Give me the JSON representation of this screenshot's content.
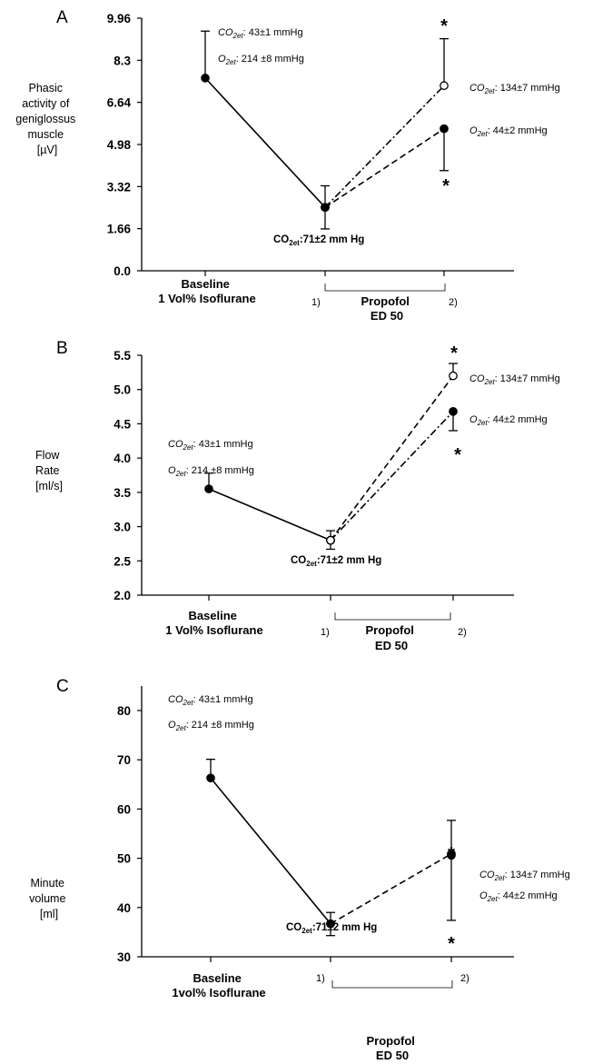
{
  "chart_data": [
    {
      "type": "line",
      "panel": "A",
      "ylabel": [
        "Phasic",
        "activity of",
        "geniglossus",
        "muscle",
        "[µV]"
      ],
      "yticks": [
        "0.0",
        "1.66",
        "3.32",
        "4.98",
        "6.64",
        "8.3",
        "9.96"
      ],
      "ylim": [
        0,
        9.96
      ],
      "categories": [
        "Baseline",
        "Propofol 1)",
        "Propofol 2)"
      ],
      "x_label_baseline": [
        "Baseline",
        "1 Vol% Isoflurane"
      ],
      "bracket_labels": [
        "1)",
        "2)"
      ],
      "bracket_title": [
        "Propofol",
        "ED 50"
      ],
      "series": [
        {
          "name": "",
          "marker": "filled",
          "style": "solid",
          "x": [
            0,
            1
          ],
          "values": [
            7.6,
            2.5
          ],
          "err_up": [
            1.85,
            0.85
          ],
          "err_down": [
            0,
            0.85
          ]
        },
        {
          "name": "",
          "marker": "open",
          "style": "dashdot",
          "x": [
            1,
            2
          ],
          "values": [
            2.5,
            7.3
          ],
          "err_up": [
            0,
            1.85
          ],
          "err_down": [
            0,
            0
          ]
        },
        {
          "name": "",
          "marker": "filled",
          "style": "dashed",
          "x": [
            1,
            2
          ],
          "values": [
            2.5,
            5.6
          ],
          "err_up": [
            0,
            0
          ],
          "err_down": [
            0,
            1.65
          ]
        }
      ],
      "annotations": {
        "baseline": [
          {
            "sym": "CO",
            "sub": "2et",
            "rest": ": 43±1 mmHg"
          },
          {
            "sym": "O",
            "sub": "2et",
            "rest": ": 214 ±8 mmHg"
          }
        ],
        "right": [
          {
            "sym": "CO",
            "sub": "2et",
            "rest": ": 134±7 mmHg"
          },
          {
            "sym": "O",
            "sub": "2et",
            "rest": ": 44±2 mmHg"
          }
        ],
        "middle": {
          "sym": "CO",
          "sub": "2et",
          "rest": ":71±2 mm Hg"
        },
        "star": "*"
      }
    },
    {
      "type": "line",
      "panel": "B",
      "ylabel": [
        "Flow",
        "Rate",
        "[ml/s]"
      ],
      "yticks": [
        "2.0",
        "2.5",
        "3.0",
        "3.5",
        "4.0",
        "4.5",
        "5.0",
        "5.5"
      ],
      "ylim": [
        2.0,
        5.5
      ],
      "categories": [
        "Baseline",
        "Propofol 1)",
        "Propofol 2)"
      ],
      "x_label_baseline": [
        "Baseline",
        "1 Vol% Isoflurane"
      ],
      "bracket_labels": [
        "1)",
        "2)"
      ],
      "bracket_title": [
        "Propofol",
        "ED 50"
      ],
      "series": [
        {
          "name": "",
          "marker": "filled",
          "style": "solid",
          "x": [
            0,
            1
          ],
          "values": [
            3.55,
            2.8
          ],
          "err_up": [
            0.23,
            0.14
          ],
          "err_down": [
            0,
            0.13
          ]
        },
        {
          "name": "",
          "marker": "open",
          "style": "dashed",
          "x": [
            1,
            2
          ],
          "values": [
            2.8,
            5.2
          ],
          "err_up": [
            0,
            0.18
          ],
          "err_down": [
            0,
            0
          ]
        },
        {
          "name": "",
          "marker": "filled",
          "style": "dashdot",
          "x": [
            1,
            2
          ],
          "values": [
            2.8,
            4.68
          ],
          "err_up": [
            0,
            0
          ],
          "err_down": [
            0,
            0.28
          ]
        }
      ],
      "annotations": {
        "baseline": [
          {
            "sym": "CO",
            "sub": "2et",
            "rest": ": 43±1 mmHg"
          },
          {
            "sym": "O",
            "sub": "2et",
            "rest": ": 214 ±8 mmHg"
          }
        ],
        "right": [
          {
            "sym": "CO",
            "sub": "2et",
            "rest": ": 134±7 mmHg"
          },
          {
            "sym": "O",
            "sub": "2et",
            "rest": ": 44±2 mmHg"
          }
        ],
        "middle": {
          "sym": "CO",
          "sub": "2et",
          "rest": ":71±2 mm Hg"
        },
        "star": "*"
      }
    },
    {
      "type": "line",
      "panel": "C",
      "ylabel": [
        "Minute",
        "volume",
        "[ml]"
      ],
      "yticks": [
        "30",
        "40",
        "50",
        "60",
        "70",
        "80"
      ],
      "ylim": [
        30,
        80
      ],
      "categories": [
        "Baseline",
        "Propofol 1)",
        "Propofol 2)"
      ],
      "x_label_baseline": [
        "Baseline",
        "1vol% Isoflurane"
      ],
      "bracket_labels": [
        "1)",
        "2)"
      ],
      "bracket_title": [
        "Propofol",
        "ED 50"
      ],
      "series": [
        {
          "name": "",
          "marker": "filled",
          "style": "solid",
          "x": [
            0,
            1
          ],
          "values": [
            66.3,
            36.7
          ],
          "err_up": [
            3.8,
            2.3
          ],
          "err_down": [
            0,
            2.4
          ]
        },
        {
          "name": "",
          "marker": "filled",
          "style": "dashed",
          "x": [
            1,
            2
          ],
          "values": [
            36.7,
            50.9
          ],
          "err_up": [
            0,
            6.8
          ],
          "err_down": [
            0,
            13.5
          ]
        },
        {
          "name": "",
          "marker": "filled",
          "style": "none",
          "x": [
            2
          ],
          "values": [
            50.6
          ],
          "err_up": [
            0
          ],
          "err_down": [
            0
          ]
        }
      ],
      "annotations": {
        "baseline": [
          {
            "sym": "CO",
            "sub": "2et",
            "rest": ": 43±1 mmHg"
          },
          {
            "sym": "O",
            "sub": "2et",
            "rest": ": 214 ±8 mmHg"
          }
        ],
        "right": [
          {
            "sym": "CO",
            "sub": "2et",
            "rest": ": 134±7 mmHg"
          },
          {
            "sym": "O",
            "sub": "2et",
            "rest": ": 44±2 mmHg"
          }
        ],
        "middle": {
          "sym": "CO",
          "sub": "2et",
          "rest": ":71±2 mm Hg"
        },
        "star": "*"
      }
    }
  ]
}
